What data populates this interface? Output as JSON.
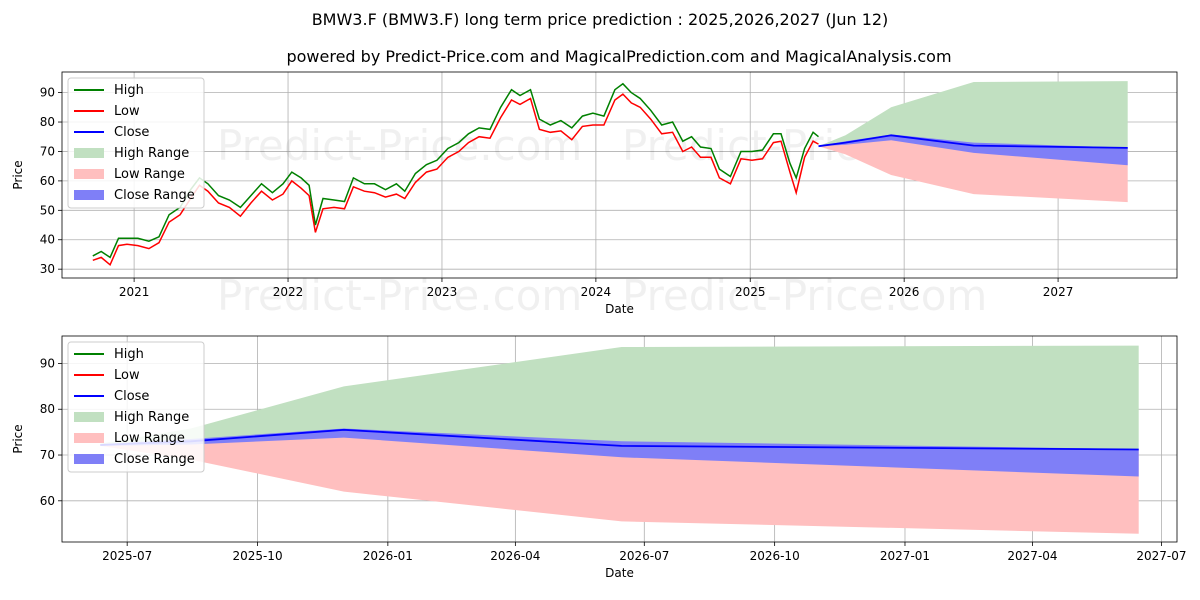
{
  "title": "BMW3.F (BMW3.F) long term price prediction : 2025,2026,2027 (Jun 12)",
  "subtitle": "powered by Predict-Price.com and MagicalPrediction.com and MagicalAnalysis.com",
  "watermark": "Predict-Price.com",
  "colors": {
    "high": "#008000",
    "low": "#ff0000",
    "close": "#0000ff",
    "high_range": "#c1e0c1",
    "low_range": "#ffbfbf",
    "close_range": "#7f7ff7",
    "grid": "#b0b0b0"
  },
  "chart_data": [
    {
      "type": "line",
      "xlabel": "Date",
      "ylabel": "Price",
      "x_ticks": [
        "2021",
        "2022",
        "2023",
        "2024",
        "2025",
        "2026",
        "2027"
      ],
      "y_ticks": [
        30,
        40,
        50,
        60,
        70,
        80,
        90
      ],
      "ylim": [
        27,
        97
      ],
      "xlim": [
        "2020-07-14",
        "2027-10-10"
      ],
      "grid": true,
      "legend_position": "top-left",
      "legend": [
        "High",
        "Low",
        "Close",
        "High Range",
        "Low Range",
        "Close Range"
      ],
      "history": {
        "dates": [
          "2020-09-25",
          "2020-10-15",
          "2020-11-05",
          "2020-11-25",
          "2020-12-15",
          "2021-01-10",
          "2021-02-05",
          "2021-03-01",
          "2021-03-25",
          "2021-04-20",
          "2021-05-15",
          "2021-06-05",
          "2021-06-25",
          "2021-07-20",
          "2021-08-15",
          "2021-09-10",
          "2021-10-05",
          "2021-10-30",
          "2021-11-25",
          "2021-12-20",
          "2022-01-10",
          "2022-02-01",
          "2022-02-20",
          "2022-03-07",
          "2022-03-25",
          "2022-04-20",
          "2022-05-15",
          "2022-06-05",
          "2022-07-01",
          "2022-07-25",
          "2022-08-20",
          "2022-09-15",
          "2022-10-05",
          "2022-10-30",
          "2022-11-25",
          "2022-12-20",
          "2023-01-15",
          "2023-02-10",
          "2023-03-05",
          "2023-03-30",
          "2023-04-25",
          "2023-05-20",
          "2023-06-15",
          "2023-07-05",
          "2023-07-30",
          "2023-08-20",
          "2023-09-15",
          "2023-10-10",
          "2023-11-05",
          "2023-11-30",
          "2023-12-25",
          "2024-01-20",
          "2024-02-15",
          "2024-03-05",
          "2024-03-25",
          "2024-04-15",
          "2024-05-10",
          "2024-06-05",
          "2024-07-01",
          "2024-07-25",
          "2024-08-15",
          "2024-09-05",
          "2024-09-30",
          "2024-10-20",
          "2024-11-15",
          "2024-12-10",
          "2025-01-05",
          "2025-01-30",
          "2025-02-25",
          "2025-03-15",
          "2025-04-05",
          "2025-04-20",
          "2025-05-10",
          "2025-05-30",
          "2025-06-12"
        ],
        "high": [
          34.5,
          36.0,
          34.0,
          40.5,
          40.5,
          40.5,
          39.5,
          41.0,
          48.5,
          51.0,
          57.0,
          61.0,
          59.0,
          55.0,
          53.5,
          51.0,
          55.0,
          59.0,
          56.0,
          59.0,
          63.0,
          61.0,
          58.5,
          45.0,
          54.0,
          53.5,
          53.0,
          61.0,
          59.0,
          59.0,
          57.0,
          59.0,
          56.5,
          62.5,
          65.5,
          67.0,
          71.0,
          73.0,
          76.0,
          78.0,
          77.5,
          85.0,
          91.0,
          89.0,
          91.0,
          81.0,
          79.0,
          80.5,
          78.0,
          82.0,
          83.0,
          82.0,
          91.0,
          93.0,
          90.0,
          88.0,
          84.0,
          79.0,
          80.0,
          73.5,
          75.0,
          71.5,
          71.0,
          64.0,
          61.5,
          70.0,
          70.0,
          70.5,
          76.0,
          76.0,
          66.0,
          61.0,
          71.0,
          76.5,
          75.0
        ],
        "low": [
          33.0,
          34.0,
          31.5,
          38.0,
          38.5,
          38.0,
          37.0,
          39.0,
          46.0,
          48.5,
          54.0,
          58.5,
          56.5,
          52.5,
          51.0,
          48.0,
          52.5,
          56.5,
          53.5,
          55.5,
          60.0,
          57.5,
          55.0,
          42.5,
          50.5,
          51.0,
          50.5,
          58.0,
          56.5,
          56.0,
          54.5,
          55.5,
          54.0,
          59.5,
          63.0,
          64.0,
          68.0,
          70.0,
          73.0,
          75.0,
          74.5,
          81.5,
          87.5,
          86.0,
          88.0,
          77.5,
          76.5,
          77.0,
          74.0,
          78.5,
          79.0,
          79.0,
          87.5,
          89.5,
          86.5,
          85.0,
          81.0,
          76.0,
          76.5,
          70.0,
          71.5,
          68.0,
          68.0,
          61.0,
          59.0,
          67.5,
          67.0,
          67.5,
          73.0,
          73.5,
          63.0,
          56.0,
          68.0,
          73.5,
          72.5
        ],
        "close": [
          33.8,
          35.0,
          32.8,
          39.3,
          39.5,
          39.2,
          38.3,
          40.0,
          47.3,
          49.8,
          55.5,
          59.8,
          57.8,
          53.8,
          52.3,
          49.5,
          53.8,
          57.8,
          54.8,
          57.3,
          61.5,
          59.3,
          56.8,
          43.8,
          52.3,
          52.3,
          51.8,
          59.5,
          57.8,
          57.5,
          55.8,
          57.3,
          55.3,
          61.0,
          64.3,
          65.5,
          69.5,
          71.5,
          74.5,
          76.5,
          76.0,
          83.3,
          89.3,
          87.5,
          89.5,
          79.3,
          77.8,
          78.8,
          76.0,
          80.3,
          81.0,
          80.5,
          89.3,
          91.3,
          88.3,
          86.5,
          82.5,
          77.5,
          78.3,
          71.8,
          73.3,
          69.8,
          69.5,
          62.5,
          60.3,
          68.8,
          68.5,
          69.0,
          74.5,
          74.8,
          64.5,
          58.5,
          69.5,
          75.0,
          73.8
        ]
      },
      "forecast": {
        "dates": [
          "2025-06-12",
          "2025-08-15",
          "2025-12-01",
          "2026-06-15",
          "2027-06-15"
        ],
        "close": [
          71.8,
          73.0,
          75.5,
          72.0,
          71.2
        ],
        "high": [
          71.8,
          75.5,
          85.0,
          93.6,
          93.9
        ],
        "low": [
          71.8,
          69.0,
          62.0,
          55.5,
          52.8
        ],
        "close_range_upper": [
          71.8,
          73.5,
          75.8,
          73.0,
          71.3
        ],
        "close_range_lower": [
          71.8,
          72.3,
          73.8,
          69.5,
          65.3
        ]
      }
    },
    {
      "type": "area",
      "xlabel": "Date",
      "ylabel": "Price",
      "x_ticks": [
        "2025-07",
        "2025-10",
        "2026-01",
        "2026-04",
        "2026-07",
        "2026-10",
        "2027-01",
        "2027-04",
        "2027-07"
      ],
      "y_ticks": [
        60,
        70,
        80,
        90
      ],
      "ylim": [
        51,
        96
      ],
      "xlim": [
        "2025-05-16",
        "2027-07-12"
      ],
      "grid": true,
      "legend_position": "top-left",
      "legend": [
        "High",
        "Low",
        "Close",
        "High Range",
        "Low Range",
        "Close Range"
      ],
      "forecast": {
        "dates": [
          "2025-06-12",
          "2025-08-15",
          "2025-12-01",
          "2026-06-15",
          "2027-06-15"
        ],
        "close": [
          72.2,
          73.0,
          75.5,
          72.0,
          71.2
        ],
        "high": [
          72.5,
          75.8,
          85.0,
          93.6,
          93.9
        ],
        "low": [
          72.0,
          69.0,
          62.0,
          55.5,
          52.8
        ],
        "close_range_upper": [
          72.4,
          73.5,
          75.8,
          73.0,
          71.3
        ],
        "close_range_lower": [
          72.0,
          72.3,
          73.8,
          69.5,
          65.3
        ]
      }
    }
  ]
}
